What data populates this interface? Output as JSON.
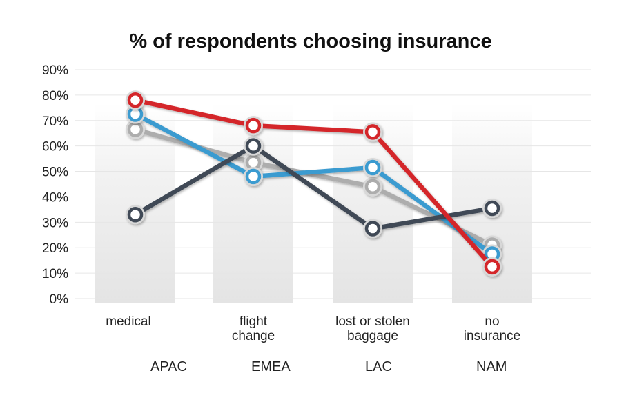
{
  "chart_data": {
    "type": "line",
    "title": "% of respondents choosing insurance",
    "xlabel": "",
    "ylabel": "",
    "ylim": [
      0,
      90
    ],
    "y_ticks": [
      "0%",
      "10%",
      "20%",
      "30%",
      "40%",
      "50%",
      "60%",
      "70%",
      "80%",
      "90%"
    ],
    "grid": true,
    "legend_position": "bottom",
    "categories": [
      [
        "medical"
      ],
      [
        "flight",
        "change"
      ],
      [
        "lost or stolen",
        "baggage"
      ],
      [
        "no",
        "insurance"
      ]
    ],
    "series": [
      {
        "name": "EMEA",
        "color": "#adadad",
        "values": [
          66.5,
          53.5,
          44,
          21
        ]
      },
      {
        "name": "LAC",
        "color": "#3a9bd0",
        "values": [
          72.5,
          48,
          51.5,
          17.5
        ]
      },
      {
        "name": "NAM",
        "color": "#3f4a56",
        "values": [
          33,
          60,
          27.5,
          35.5
        ]
      },
      {
        "name": "APAC",
        "color": "#d4252b",
        "values": [
          78,
          68,
          65.5,
          12.5
        ]
      }
    ],
    "legend_order": [
      "APAC",
      "EMEA",
      "LAC",
      "NAM"
    ]
  }
}
